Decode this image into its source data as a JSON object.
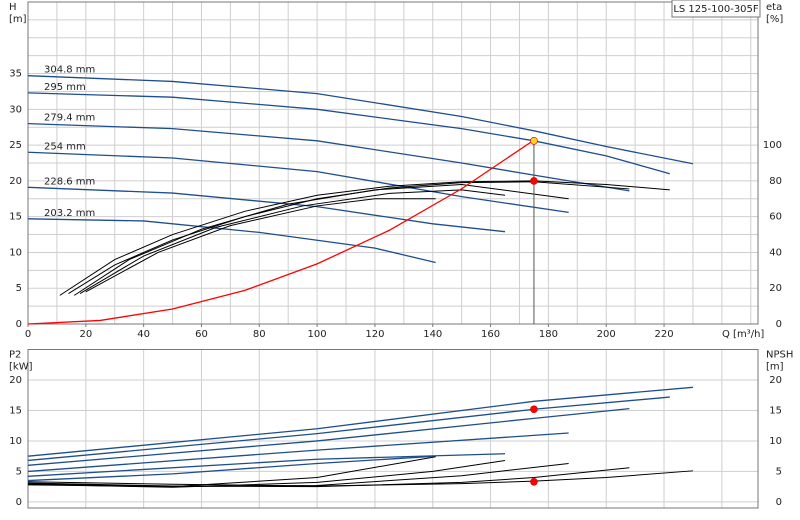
{
  "chart_data": [
    {
      "type": "line",
      "title": "LS 125-100-305F",
      "y_label": "H",
      "y_unit": "[m]",
      "y2_label": "eta",
      "y2_unit": "[%]",
      "x_label": "Q [m³/h]",
      "xlim": [
        0,
        252.5
      ],
      "xticks": [
        0,
        20,
        40,
        60,
        80,
        100,
        120,
        140,
        160,
        180,
        200,
        220
      ],
      "xgrid": [
        10,
        20,
        30,
        40,
        50,
        60,
        70,
        80,
        90,
        100,
        110,
        120,
        130,
        140,
        150,
        160,
        170,
        180,
        190,
        200,
        210,
        220,
        230,
        240,
        250
      ],
      "ylim": [
        0,
        45
      ],
      "yticks": [
        0,
        5,
        10,
        15,
        20,
        25,
        30,
        35
      ],
      "ygrid": [
        2.5,
        5,
        7.5,
        10,
        12.5,
        15,
        17.5,
        20,
        22.5,
        25,
        27.5,
        30,
        32.5,
        35,
        37.5,
        40,
        42.5
      ],
      "y2lim": [
        0,
        180
      ],
      "y2ticks": [
        0,
        20,
        40,
        60,
        80,
        100
      ],
      "series": [
        {
          "name": "304.8 mm",
          "color": "#1f4e8c",
          "x": [
            0,
            50,
            100,
            150,
            175,
            200,
            230
          ],
          "values": [
            34.7,
            33.9,
            32.2,
            29,
            27,
            24.8,
            22.4
          ]
        },
        {
          "name": "295 mm",
          "color": "#1f4e8c",
          "x": [
            0,
            50,
            100,
            150,
            175,
            200,
            222
          ],
          "values": [
            32.3,
            31.7,
            30,
            27.3,
            25.6,
            23.5,
            21
          ]
        },
        {
          "name": "279.4 mm",
          "color": "#1f4e8c",
          "x": [
            0,
            50,
            100,
            150,
            175,
            208
          ],
          "values": [
            28,
            27.3,
            25.6,
            22.5,
            20.8,
            18.6
          ]
        },
        {
          "name": "254 mm",
          "color": "#1f4e8c",
          "x": [
            0,
            50,
            100,
            150,
            187
          ],
          "values": [
            24,
            23.2,
            21.3,
            17.8,
            15.6
          ]
        },
        {
          "name": "228.6 mm",
          "color": "#1f4e8c",
          "x": [
            0,
            50,
            100,
            140,
            165
          ],
          "values": [
            19.1,
            18.3,
            16.4,
            14,
            12.9
          ]
        },
        {
          "name": "203.2 mm",
          "color": "#1f4e8c",
          "x": [
            0,
            40,
            80,
            120,
            141
          ],
          "values": [
            14.7,
            14.4,
            12.8,
            10.6,
            8.6
          ]
        },
        {
          "color": "#000000",
          "axis": "y2",
          "x": [
            11,
            30,
            50,
            75,
            100,
            125,
            150,
            175,
            200,
            222
          ],
          "values": [
            16,
            36,
            50,
            63,
            72,
            77,
            79.5,
            80,
            78,
            75
          ]
        },
        {
          "color": "#000000",
          "axis": "y2",
          "x": [
            14,
            30,
            50,
            75,
            100,
            125,
            150,
            175,
            208
          ],
          "values": [
            17,
            33,
            47,
            60,
            70,
            76,
            79,
            79.5,
            75.5
          ]
        },
        {
          "color": "#000000",
          "axis": "y2",
          "x": [
            16,
            35,
            60,
            90,
            120,
            150,
            187
          ],
          "values": [
            16,
            36,
            53,
            67,
            75,
            78,
            70
          ]
        },
        {
          "color": "#000000",
          "axis": "y2",
          "x": [
            18,
            40,
            65,
            95,
            125,
            150,
            165
          ],
          "values": [
            17,
            38,
            54,
            66,
            73,
            75,
            72
          ]
        },
        {
          "color": "#000000",
          "axis": "y2",
          "x": [
            20,
            45,
            70,
            100,
            120,
            141
          ],
          "values": [
            18,
            40,
            55,
            66,
            70,
            70
          ]
        },
        {
          "color": "#ff0000",
          "x": [
            0,
            25,
            50,
            75,
            100,
            125,
            150,
            175
          ],
          "values": [
            0,
            0.5,
            2.1,
            4.7,
            8.4,
            13.1,
            18.9,
            25.7
          ]
        }
      ],
      "points": [
        {
          "x": 175,
          "y": 25.6,
          "color": "#ffd21f"
        },
        {
          "x": 175,
          "y": 80,
          "color": "#ff0000",
          "axis": "y2"
        }
      ]
    },
    {
      "type": "line",
      "y_label": "P2",
      "y_unit": "[kW]",
      "y2_label": "NPSH",
      "y2_unit": "[m]",
      "xlim": [
        0,
        252.5
      ],
      "xgrid": [
        20,
        40,
        60,
        80,
        100,
        120,
        140,
        160,
        180,
        200,
        220,
        240
      ],
      "ylim": [
        -1,
        25
      ],
      "yticks": [
        0,
        5,
        10,
        15,
        20
      ],
      "y2lim": [
        -1,
        25
      ],
      "y2ticks": [
        0,
        5,
        10,
        15,
        20
      ],
      "series": [
        {
          "color": "#1f4e8c",
          "x": [
            0,
            100,
            175,
            230
          ],
          "values": [
            7.5,
            12,
            16.5,
            18.8
          ]
        },
        {
          "color": "#1f4e8c",
          "x": [
            0,
            100,
            175,
            222
          ],
          "values": [
            6.8,
            11.2,
            15.2,
            17.2
          ]
        },
        {
          "color": "#1f4e8c",
          "x": [
            0,
            100,
            175,
            208
          ],
          "values": [
            6,
            10,
            13.7,
            15.3
          ]
        },
        {
          "color": "#1f4e8c",
          "x": [
            0,
            100,
            187
          ],
          "values": [
            5,
            8.5,
            11.3
          ]
        },
        {
          "color": "#1f4e8c",
          "x": [
            0,
            100,
            165
          ],
          "values": [
            4.2,
            7,
            7.9
          ]
        },
        {
          "color": "#1f4e8c",
          "x": [
            0,
            50,
            100,
            141
          ],
          "values": [
            3.5,
            4.6,
            6.3,
            7.5
          ]
        },
        {
          "color": "#000000",
          "axis": "y2",
          "x": [
            0,
            50,
            100,
            150,
            175,
            200,
            230
          ],
          "values": [
            3.3,
            2.9,
            2.6,
            3,
            3.4,
            4,
            5.1
          ]
        },
        {
          "color": "#000000",
          "axis": "y2",
          "x": [
            0,
            50,
            100,
            150,
            175,
            208
          ],
          "values": [
            3.1,
            2.6,
            2.5,
            3.2,
            4,
            5.6
          ]
        },
        {
          "color": "#000000",
          "axis": "y2",
          "x": [
            0,
            50,
            100,
            150,
            187
          ],
          "values": [
            3,
            2.5,
            2.7,
            4.3,
            6.3
          ]
        },
        {
          "color": "#000000",
          "axis": "y2",
          "x": [
            0,
            50,
            100,
            140,
            165
          ],
          "values": [
            2.9,
            2.4,
            3.2,
            5,
            6.8
          ]
        },
        {
          "color": "#000000",
          "axis": "y2",
          "x": [
            0,
            50,
            100,
            141
          ],
          "values": [
            2.8,
            2.5,
            4,
            7.4
          ]
        }
      ],
      "points": [
        {
          "x": 175,
          "y": 15.2,
          "color": "#ff0000"
        },
        {
          "x": 175,
          "y": 3.3,
          "color": "#ff0000",
          "axis": "y2"
        }
      ]
    }
  ]
}
